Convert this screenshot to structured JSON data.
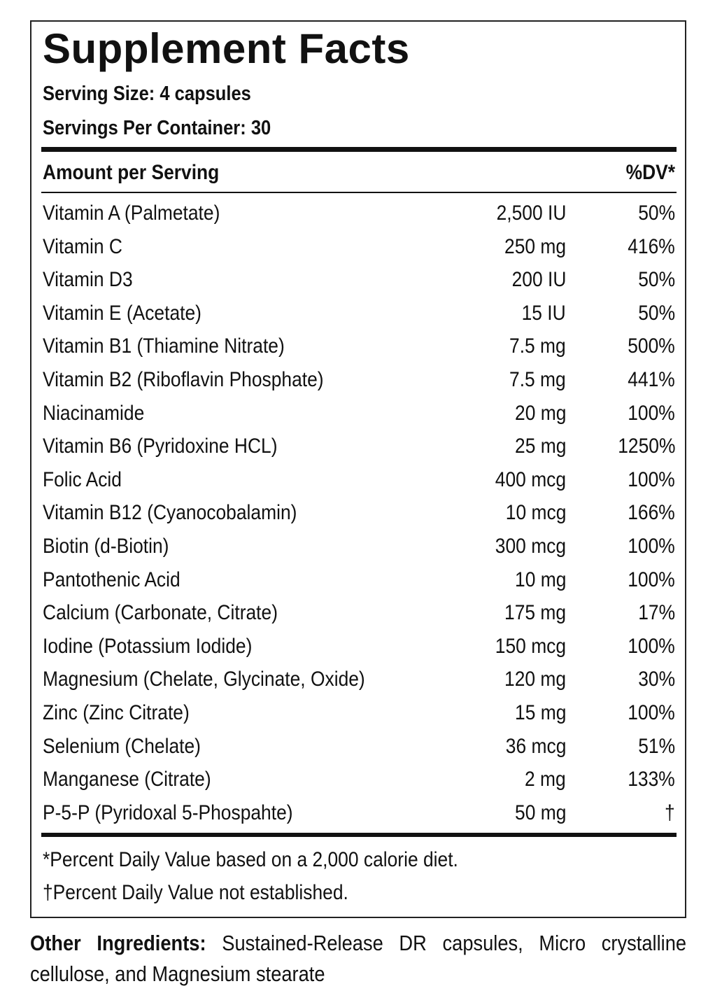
{
  "title": "Supplement Facts",
  "serving_size": "Serving Size: 4 capsules",
  "servings_per_container": "Servings Per Container: 30",
  "header": {
    "amount": "Amount per Serving",
    "dv": "%DV*"
  },
  "rows": [
    {
      "name": "Vitamin A (Palmetate)",
      "amount": "2,500 IU",
      "dv": "50%"
    },
    {
      "name": "Vitamin C",
      "amount": "250 mg",
      "dv": "416%"
    },
    {
      "name": "Vitamin D3",
      "amount": "200 IU",
      "dv": "50%"
    },
    {
      "name": "Vitamin E (Acetate)",
      "amount": "15 IU",
      "dv": "50%"
    },
    {
      "name": "Vitamin B1 (Thiamine Nitrate)",
      "amount": "7.5 mg",
      "dv": "500%"
    },
    {
      "name": "Vitamin B2 (Riboflavin Phosphate)",
      "amount": "7.5 mg",
      "dv": "441%"
    },
    {
      "name": "Niacinamide",
      "amount": "20 mg",
      "dv": "100%"
    },
    {
      "name": "Vitamin B6 (Pyridoxine HCL)",
      "amount": "25 mg",
      "dv": "1250%"
    },
    {
      "name": "Folic Acid",
      "amount": "400 mcg",
      "dv": "100%"
    },
    {
      "name": "Vitamin B12 (Cyanocobalamin)",
      "amount": "10 mcg",
      "dv": "166%"
    },
    {
      "name": "Biotin (d-Biotin)",
      "amount": "300 mcg",
      "dv": "100%"
    },
    {
      "name": "Pantothenic Acid",
      "amount": "10 mg",
      "dv": "100%"
    },
    {
      "name": "Calcium (Carbonate, Citrate)",
      "amount": "175 mg",
      "dv": "17%"
    },
    {
      "name": "Iodine (Potassium Iodide)",
      "amount": "150 mcg",
      "dv": "100%"
    },
    {
      "name": "Magnesium (Chelate, Glycinate, Oxide)",
      "amount": "120 mg",
      "dv": "30%"
    },
    {
      "name": "Zinc (Zinc Citrate)",
      "amount": "15 mg",
      "dv": "100%"
    },
    {
      "name": "Selenium (Chelate)",
      "amount": "36 mcg",
      "dv": "51%"
    },
    {
      "name": "Manganese (Citrate)",
      "amount": "2 mg",
      "dv": "133%"
    },
    {
      "name": "P-5-P (Pyridoxal 5-Phospahte)",
      "amount": "50 mg",
      "dv": "†"
    }
  ],
  "footnotes": [
    "*Percent Daily Value based on a 2,000 calorie diet.",
    "†Percent Daily Value not established."
  ],
  "other_ingredients": {
    "label": "Other Ingredients:",
    "text": "Sustained-Release DR capsules, Micro crystalline cellulose, and Magnesium stearate"
  }
}
